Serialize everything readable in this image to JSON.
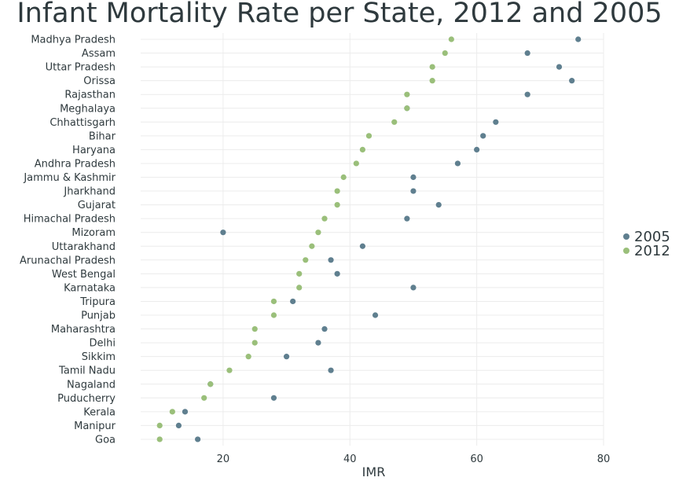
{
  "chart_data": {
    "type": "scatter",
    "title": "Infant Mortality Rate per State, 2012 and 2005",
    "xlabel": "IMR",
    "ylabel": "",
    "xlim": [
      7,
      80
    ],
    "xticks": [
      20,
      40,
      60,
      80
    ],
    "grid": true,
    "legend_position": "right",
    "categories": [
      "Madhya Pradesh",
      "Assam",
      "Uttar Pradesh",
      "Orissa",
      "Rajasthan",
      "Meghalaya",
      "Chhattisgarh",
      "Bihar",
      "Haryana",
      "Andhra Pradesh",
      "Jammu & Kashmir",
      "Jharkhand",
      "Gujarat",
      "Himachal Pradesh",
      "Mizoram",
      "Uttarakhand",
      "Arunachal Pradesh",
      "West Bengal",
      "Karnataka",
      "Tripura",
      "Punjab",
      "Maharashtra",
      "Delhi",
      "Sikkim",
      "Tamil Nadu",
      "Nagaland",
      "Puducherry",
      "Kerala",
      "Manipur",
      "Goa"
    ],
    "series": [
      {
        "name": "2005",
        "color": "#5f7f8f",
        "values": [
          76,
          68,
          73,
          75,
          68,
          49,
          63,
          61,
          60,
          57,
          50,
          50,
          54,
          49,
          20,
          42,
          37,
          38,
          50,
          31,
          44,
          36,
          35,
          30,
          37,
          18,
          28,
          14,
          13,
          16
        ]
      },
      {
        "name": "2012",
        "color": "#9abf7a",
        "values": [
          56,
          55,
          53,
          53,
          49,
          49,
          47,
          43,
          42,
          41,
          39,
          38,
          38,
          36,
          35,
          34,
          33,
          32,
          32,
          28,
          28,
          25,
          25,
          24,
          21,
          18,
          17,
          12,
          10,
          10
        ]
      }
    ]
  }
}
